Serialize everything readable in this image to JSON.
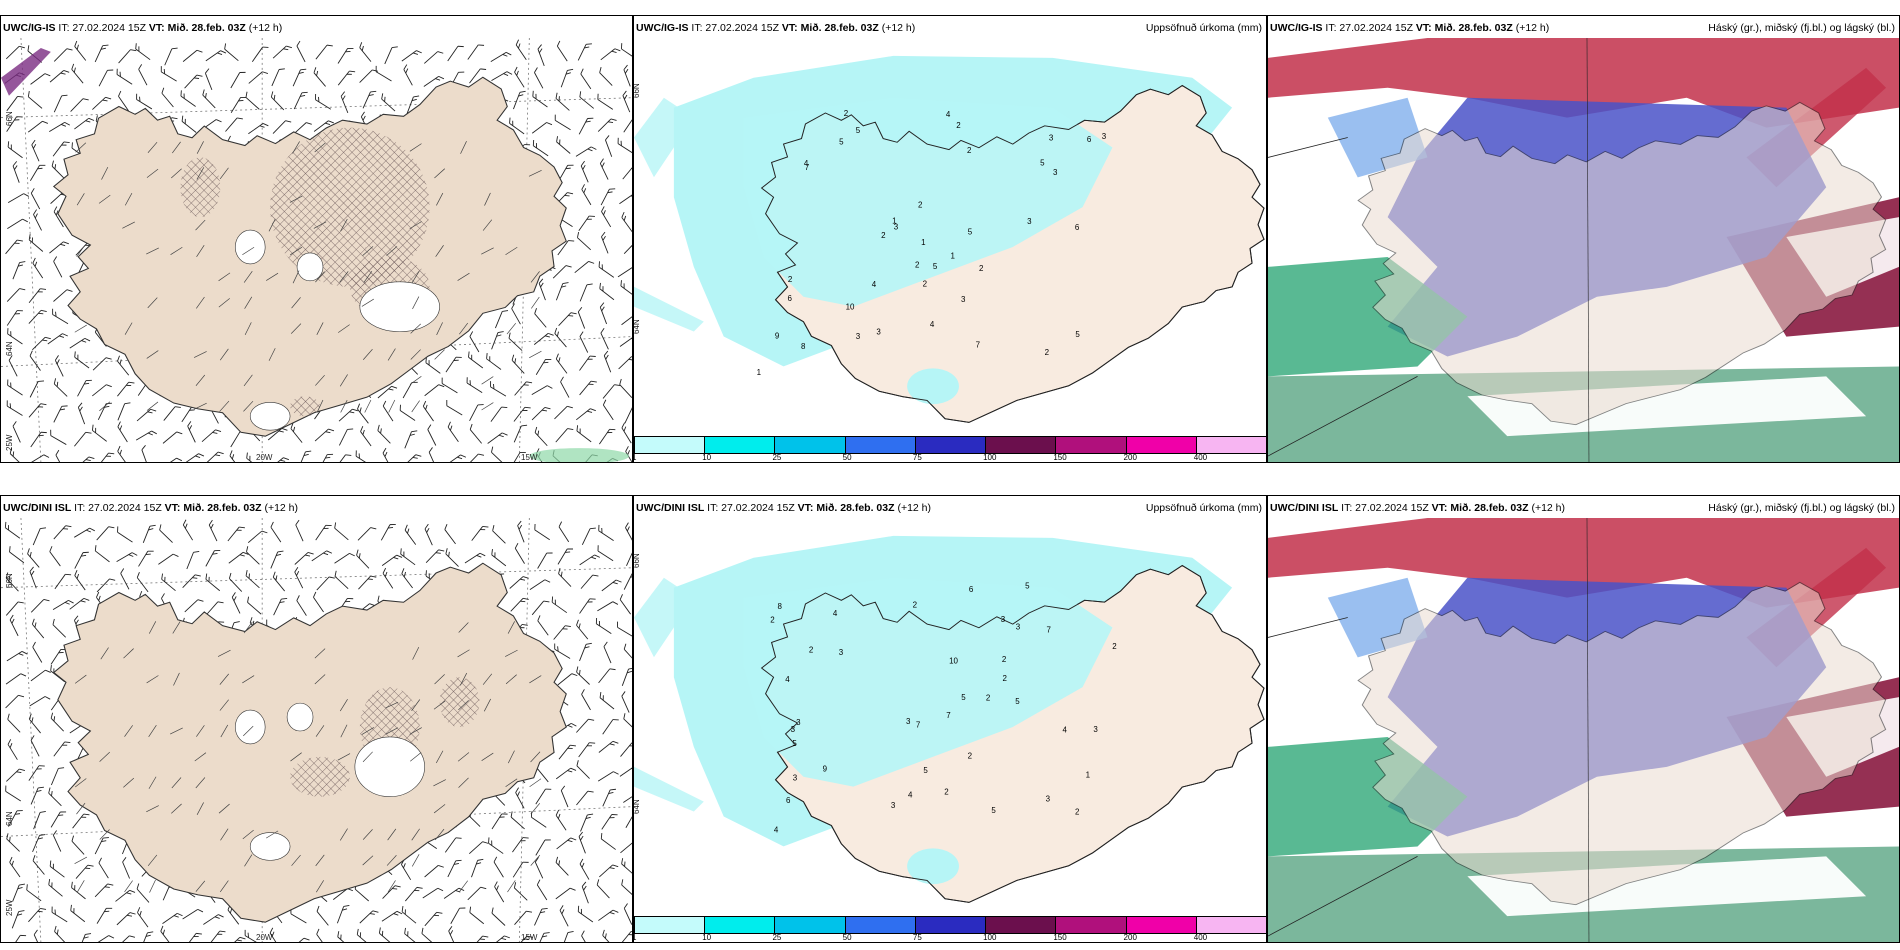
{
  "colors": {
    "land": "#ecdccb",
    "land_light": "#f8ebe0",
    "precip": "#b6f5f6",
    "hatch": "#6d5a5a",
    "cloud_high": "#c2304a",
    "cloud_mid": "#4a52c8",
    "cloud_low": "#2fa878"
  },
  "rows": [
    {
      "model": "UWC/IG-IS",
      "panels": [
        {
          "model": "UWC/IG-IS",
          "it": "IT: 27.02.2024 15Z",
          "vt": "VT: Mið. 28.feb. 03Z",
          "lead": "(+12 h)",
          "right": "",
          "type": "wind"
        },
        {
          "model": "UWC/IG-IS",
          "it": "IT: 27.02.2024 15Z",
          "vt": "VT: Mið. 28.feb. 03Z",
          "lead": "(+12 h)",
          "right": "Uppsöfnuð úrkoma (mm)",
          "type": "precip"
        },
        {
          "model": "UWC/IG-IS",
          "it": "IT: 27.02.2024 15Z",
          "vt": "VT: Mið. 28.feb. 03Z",
          "lead": "(+12 h)",
          "right": "Háský (gr.), miðský (fj.bl.) og lágský (bl.)",
          "type": "cloud"
        }
      ]
    },
    {
      "model": "UWC/DINI ISL",
      "panels": [
        {
          "model": "UWC/DINI ISL",
          "it": "IT: 27.02.2024 15Z",
          "vt": "VT: Mið. 28.feb. 03Z",
          "lead": "(+12 h)",
          "right": "",
          "type": "wind"
        },
        {
          "model": "UWC/DINI ISL",
          "it": "IT: 27.02.2024 15Z",
          "vt": "VT: Mið. 28.feb. 03Z",
          "lead": "(+12 h)",
          "right": "Uppsöfnuð úrkoma (mm)",
          "type": "precip"
        },
        {
          "model": "UWC/DINI ISL",
          "it": "IT: 27.02.2024 15Z",
          "vt": "VT: Mið. 28.feb. 03Z",
          "lead": "(+12 h)",
          "right": "Háský (gr.), miðský (fj.bl.) og lágský (bl.)",
          "type": "cloud"
        }
      ]
    }
  ],
  "axis_labels": {
    "lat_66": "66N",
    "lat_64": "64N",
    "lon_25": "25W",
    "lon_20": "20W",
    "lon_15": "15W"
  },
  "precip_legend": {
    "ticks": [
      "1",
      "10",
      "25",
      "50",
      "75",
      "100",
      "150",
      "200",
      "400"
    ],
    "colors": [
      "#c4fbfb",
      "#00eded",
      "#00c2ea",
      "#2f6ff0",
      "#2a2bc0",
      "#6b0f4d",
      "#b0107c",
      "#f000a8",
      "#f7b5f2"
    ]
  },
  "precip_values": {
    "top": [
      "5",
      "6",
      "3",
      "2",
      "6",
      "7",
      "5",
      "3",
      "4",
      "6",
      "5",
      "5",
      "4",
      "3",
      "3",
      "2",
      "8",
      "3",
      "4",
      "7",
      "2",
      "1",
      "3",
      "2",
      "2",
      "5",
      "10",
      "9",
      "2",
      "3",
      "1",
      "2",
      "4",
      "2",
      "3",
      "2",
      "5",
      "1",
      "1",
      "2"
    ],
    "bottom": [
      "5",
      "3",
      "2",
      "3",
      "7",
      "5",
      "4",
      "3",
      "6",
      "9",
      "5",
      "3",
      "4",
      "2",
      "3",
      "3",
      "2",
      "7",
      "10",
      "2",
      "2",
      "4",
      "5",
      "3",
      "8",
      "2",
      "3",
      "3",
      "6",
      "2",
      "5",
      "7",
      "2",
      "3",
      "5",
      "1",
      "2",
      "4",
      "4",
      "2"
    ]
  }
}
